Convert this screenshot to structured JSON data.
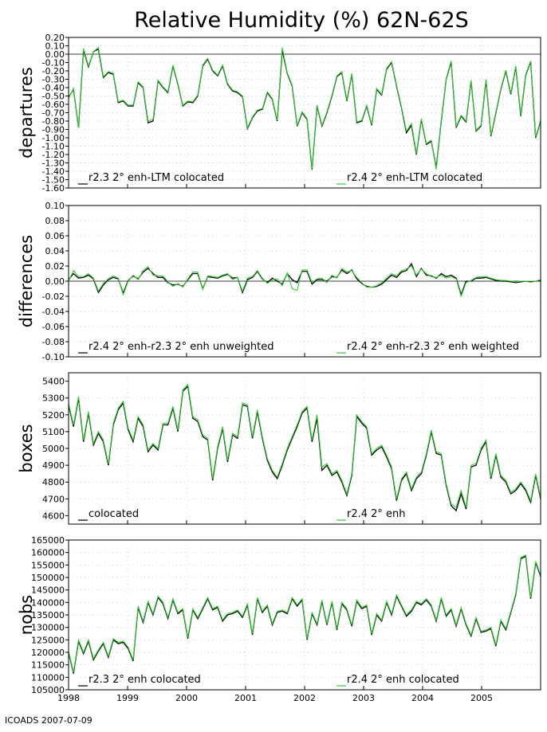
{
  "title": "Relative Humidity (%) 62N-62S",
  "footer": "ICOADS 2007-07-09",
  "colors": {
    "series_a": "#000000",
    "series_b": "#33cc33"
  },
  "chart_data": [
    {
      "type": "line",
      "ylabel": "departures",
      "ylim": [
        -1.6,
        0.2
      ],
      "yticks": [
        "0.20",
        "0.10",
        "0.00",
        "-0.10",
        "-0.20",
        "-0.30",
        "-0.40",
        "-0.50",
        "-0.60",
        "-0.70",
        "-0.80",
        "-0.90",
        "-1.00",
        "-1.10",
        "-1.20",
        "-1.30",
        "-1.40",
        "-1.50",
        "-1.60"
      ],
      "zero_line": true,
      "legend": [
        "r2.3 2° enh-LTM colocated",
        "r2.4 2° enh-LTM colocated"
      ],
      "series": [
        {
          "name": "r2.3 2° enh-LTM colocated",
          "values": [
            -0.52,
            -0.42,
            -0.88,
            0.05,
            -0.15,
            0.03,
            0.06,
            -0.28,
            -0.22,
            -0.24,
            -0.58,
            -0.56,
            -0.62,
            -0.62,
            -0.34,
            -0.4,
            -0.82,
            -0.8,
            -0.32,
            -0.4,
            -0.46,
            -0.14,
            -0.36,
            -0.62,
            -0.57,
            -0.58,
            -0.5,
            -0.14,
            -0.06,
            -0.2,
            -0.26,
            -0.14,
            -0.36,
            -0.44,
            -0.46,
            -0.51,
            -0.89,
            -0.76,
            -0.68,
            -0.66,
            -0.46,
            -0.54,
            -0.8,
            0.05,
            -0.23,
            -0.38,
            -0.86,
            -0.7,
            -0.78,
            -1.38,
            -0.62,
            -0.86,
            -0.7,
            -0.5,
            -0.27,
            -0.22,
            -0.56,
            -0.24,
            -0.82,
            -0.8,
            -0.62,
            -0.85,
            -0.42,
            -0.49,
            -0.18,
            -0.1,
            -0.38,
            -0.64,
            -0.94,
            -0.85,
            -1.2,
            -0.78,
            -1.08,
            -1.04,
            -1.36,
            -0.8,
            -0.3,
            -0.09,
            -0.88,
            -0.74,
            -0.81,
            -0.32,
            -0.92,
            -0.86,
            -0.31,
            -0.98,
            -0.7,
            -0.42,
            -0.2,
            -0.48,
            -0.15,
            -0.74,
            -0.25,
            -0.09,
            -1.0,
            -0.8
          ]
        },
        {
          "name": "r2.4 2° enh-LTM colocated",
          "values": [
            -0.53,
            -0.41,
            -0.88,
            0.07,
            -0.14,
            0.03,
            0.08,
            -0.27,
            -0.21,
            -0.23,
            -0.57,
            -0.55,
            -0.61,
            -0.61,
            -0.33,
            -0.39,
            -0.8,
            -0.78,
            -0.31,
            -0.39,
            -0.45,
            -0.13,
            -0.35,
            -0.61,
            -0.56,
            -0.57,
            -0.49,
            -0.13,
            -0.05,
            -0.19,
            -0.25,
            -0.13,
            -0.35,
            -0.43,
            -0.45,
            -0.5,
            -0.88,
            -0.75,
            -0.67,
            -0.65,
            -0.45,
            -0.53,
            -0.79,
            0.08,
            -0.22,
            -0.37,
            -0.85,
            -0.69,
            -0.77,
            -1.37,
            -0.61,
            -0.85,
            -0.69,
            -0.49,
            -0.26,
            -0.21,
            -0.55,
            -0.23,
            -0.81,
            -0.79,
            -0.61,
            -0.84,
            -0.41,
            -0.48,
            -0.17,
            -0.09,
            -0.37,
            -0.63,
            -0.92,
            -0.83,
            -1.19,
            -0.77,
            -1.07,
            -1.03,
            -1.38,
            -0.79,
            -0.29,
            -0.08,
            -0.87,
            -0.73,
            -0.8,
            -0.31,
            -0.91,
            -0.85,
            -0.3,
            -0.97,
            -0.69,
            -0.41,
            -0.19,
            -0.47,
            -0.14,
            -0.73,
            -0.24,
            -0.08,
            -0.99,
            -0.79
          ]
        }
      ]
    },
    {
      "type": "line",
      "ylabel": "differences",
      "ylim": [
        -0.1,
        0.1
      ],
      "yticks": [
        "0.10",
        "0.08",
        "0.06",
        "0.04",
        "0.02",
        "0.00",
        "-0.02",
        "-0.04",
        "-0.06",
        "-0.08",
        "-0.10"
      ],
      "zero_line": true,
      "legend": [
        "r2.4 2° enh-r2.3 2° enh unweighted",
        "r2.4 2° enh-r2.3 2° enh weighted"
      ],
      "series": [
        {
          "name": "r2.4 2° enh-r2.3 2° enh unweighted",
          "values": [
            0.002,
            0.01,
            0.004,
            0.005,
            0.008,
            0.003,
            -0.015,
            -0.005,
            0.002,
            0.005,
            0.003,
            -0.016,
            0.001,
            0.007,
            0.003,
            0.012,
            0.017,
            0.01,
            0.005,
            0.005,
            -0.002,
            -0.005,
            -0.004,
            -0.007,
            0.002,
            0.01,
            0.01,
            -0.01,
            0.006,
            0.005,
            0.004,
            0.007,
            0.009,
            0.004,
            0.005,
            -0.015,
            0.002,
            0.005,
            0.013,
            0.003,
            -0.002,
            0.004,
            0.0,
            -0.004,
            0.01,
            0.002,
            -0.002,
            0.013,
            0.013,
            -0.004,
            0.002,
            0.002,
            0.0,
            0.006,
            0.005,
            0.015,
            0.01,
            0.015,
            0.003,
            -0.003,
            -0.007,
            -0.008,
            -0.007,
            -0.004,
            0.002,
            0.008,
            0.005,
            0.012,
            0.014,
            0.023,
            0.006,
            0.017,
            0.008,
            0.007,
            0.004,
            0.01,
            0.006,
            0.008,
            0.004,
            -0.018,
            0.0,
            0.0,
            0.004,
            0.004,
            0.005,
            0.003,
            0.001,
            0.0,
            0.0,
            -0.001,
            -0.002,
            -0.001,
            0.0,
            -0.001,
            0.0,
            0.001
          ]
        },
        {
          "name": "r2.4 2° enh-r2.3 2° enh weighted",
          "values": [
            0.0,
            0.014,
            0.006,
            0.006,
            0.01,
            0.004,
            -0.013,
            -0.003,
            0.003,
            0.007,
            0.004,
            -0.018,
            0.0,
            0.008,
            0.002,
            0.014,
            0.019,
            0.008,
            0.007,
            0.007,
            -0.001,
            -0.007,
            -0.003,
            -0.008,
            0.003,
            0.012,
            0.012,
            -0.011,
            0.007,
            0.006,
            0.005,
            0.008,
            0.01,
            0.002,
            0.005,
            -0.013,
            0.004,
            0.006,
            0.014,
            0.004,
            -0.003,
            0.002,
            0.003,
            -0.006,
            0.011,
            -0.01,
            -0.012,
            0.015,
            0.015,
            -0.002,
            0.003,
            0.004,
            -0.002,
            0.008,
            0.004,
            0.017,
            0.012,
            0.014,
            0.005,
            -0.002,
            -0.008,
            -0.008,
            -0.006,
            -0.002,
            0.004,
            0.01,
            0.007,
            0.014,
            0.016,
            0.02,
            0.008,
            0.016,
            0.01,
            0.006,
            0.005,
            0.008,
            0.004,
            0.006,
            0.003,
            -0.02,
            -0.002,
            0.001,
            0.005,
            0.006,
            0.006,
            0.004,
            0.002,
            0.001,
            0.001,
            0.0,
            -0.001,
            0.0,
            0.0,
            0.0,
            0.0,
            0.002
          ]
        }
      ]
    },
    {
      "type": "line",
      "ylabel": "boxes",
      "ylim": [
        4550,
        5450
      ],
      "yticks": [
        "5400",
        "5300",
        "5200",
        "5100",
        "5000",
        "4900",
        "4800",
        "4700",
        "4600"
      ],
      "zero_line": false,
      "legend": [
        "colocated",
        "r2.4 2° enh"
      ],
      "series": [
        {
          "name": "colocated",
          "values": [
            5260,
            5130,
            5300,
            5040,
            5210,
            5020,
            5090,
            5040,
            4900,
            5140,
            5230,
            5270,
            5110,
            5040,
            5180,
            5130,
            4980,
            5020,
            4990,
            5140,
            5140,
            5240,
            5100,
            5340,
            5370,
            5180,
            5160,
            5070,
            5050,
            4810,
            5000,
            5120,
            4920,
            5080,
            5060,
            5260,
            5250,
            5060,
            5220,
            5060,
            4930,
            4860,
            4820,
            4900,
            4990,
            5060,
            5130,
            5210,
            5240,
            5040,
            5180,
            4870,
            4900,
            4840,
            4860,
            4800,
            4720,
            4840,
            5190,
            5150,
            5120,
            4960,
            4990,
            5010,
            4950,
            4880,
            4690,
            4810,
            4850,
            4750,
            4820,
            4850,
            4960,
            5100,
            4970,
            4960,
            4780,
            4660,
            4630,
            4730,
            4640,
            4890,
            4900,
            4990,
            5040,
            4820,
            4960,
            4830,
            4800,
            4730,
            4750,
            4790,
            4750,
            4680,
            4840,
            4700
          ]
        },
        {
          "name": "r2.4 2° enh",
          "values": [
            5270,
            5140,
            5310,
            5050,
            5220,
            5030,
            5100,
            5050,
            4910,
            5150,
            5240,
            5280,
            5120,
            5050,
            5190,
            5140,
            4990,
            5030,
            5000,
            5150,
            5150,
            5250,
            5110,
            5350,
            5380,
            5190,
            5170,
            5080,
            5060,
            4820,
            5010,
            5130,
            4930,
            5090,
            5070,
            5270,
            5260,
            5070,
            5230,
            5070,
            4940,
            4870,
            4830,
            4910,
            5000,
            5070,
            5140,
            5220,
            5250,
            5050,
            5200,
            4890,
            4910,
            4850,
            4870,
            4810,
            4730,
            4850,
            5200,
            5160,
            5130,
            4970,
            5000,
            5020,
            4960,
            4890,
            4700,
            4820,
            4860,
            4760,
            4830,
            4860,
            4970,
            5110,
            4980,
            4970,
            4790,
            4670,
            4650,
            4750,
            4650,
            4900,
            4910,
            5000,
            5050,
            4830,
            4970,
            4840,
            4810,
            4740,
            4760,
            4800,
            4760,
            4690,
            4850,
            4710
          ]
        }
      ]
    },
    {
      "type": "line",
      "ylabel": "nobs",
      "ylim": [
        105000,
        165000
      ],
      "yticks": [
        "165000",
        "160000",
        "155000",
        "150000",
        "145000",
        "140000",
        "135000",
        "130000",
        "125000",
        "120000",
        "115000",
        "110000",
        "105000"
      ],
      "zero_line": false,
      "legend": [
        "r2.3 2° enh colocated",
        "r2.4 2° enh colocated"
      ],
      "xticks": [
        "1998",
        "1999",
        "2000",
        "2001",
        "2002",
        "2003",
        "2004",
        "2005"
      ],
      "series": [
        {
          "name": "r2.3 2° enh colocated",
          "values": [
            120000,
            111500,
            124500,
            119500,
            124500,
            117000,
            120500,
            123500,
            118000,
            125000,
            123500,
            124000,
            121500,
            116500,
            138000,
            132000,
            140000,
            135000,
            142000,
            139500,
            133500,
            141000,
            135500,
            137000,
            125500,
            137000,
            133500,
            137500,
            141500,
            137000,
            138000,
            132500,
            135000,
            135500,
            136500,
            134000,
            139000,
            127000,
            141500,
            136000,
            138500,
            131000,
            136000,
            136500,
            135500,
            141500,
            138500,
            141000,
            125000,
            135500,
            131000,
            140500,
            131000,
            140000,
            129000,
            139500,
            137000,
            130500,
            140500,
            137500,
            138500,
            127000,
            135000,
            132500,
            140000,
            135000,
            142500,
            138500,
            134500,
            136500,
            140000,
            139000,
            141000,
            138500,
            132500,
            141500,
            134500,
            137000,
            130500,
            137500,
            131000,
            126500,
            133500,
            128000,
            128500,
            129500,
            122500,
            132500,
            129000,
            136000,
            143000,
            157500,
            158500,
            141500,
            156000,
            150500
          ]
        },
        {
          "name": "r2.4 2° enh colocated",
          "values": [
            120500,
            112000,
            125000,
            120000,
            125000,
            117500,
            121000,
            124000,
            118500,
            125500,
            124000,
            124500,
            122000,
            117000,
            138500,
            132500,
            140500,
            135500,
            142500,
            140000,
            134000,
            141500,
            136000,
            137500,
            126000,
            137500,
            134000,
            138000,
            142000,
            137500,
            138500,
            133000,
            135500,
            136000,
            137000,
            134500,
            139500,
            127500,
            142000,
            136500,
            139000,
            131500,
            136500,
            137000,
            136000,
            142000,
            139000,
            141500,
            125500,
            136000,
            131500,
            141000,
            131500,
            140500,
            129500,
            140000,
            137500,
            131000,
            141000,
            138000,
            139000,
            127500,
            135500,
            133000,
            140500,
            135500,
            143000,
            139000,
            135000,
            137000,
            140500,
            139500,
            141500,
            139000,
            133000,
            142000,
            135000,
            137500,
            131000,
            138000,
            131500,
            127000,
            134000,
            128500,
            129000,
            130000,
            123000,
            133000,
            129500,
            136500,
            143500,
            158000,
            159000,
            142000,
            156500,
            151000
          ]
        }
      ]
    }
  ]
}
